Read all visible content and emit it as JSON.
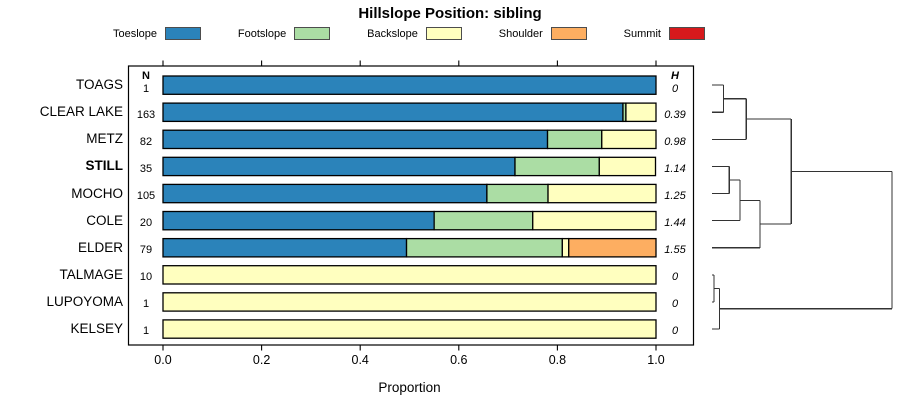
{
  "title": "Hillslope Position: sibling",
  "xlabel": "Proportion",
  "columns": {
    "n_header": "N",
    "h_header": "H"
  },
  "legend": [
    {
      "label": "Toeslope",
      "color": "#2B83BA"
    },
    {
      "label": "Footslope",
      "color": "#ABDDA4"
    },
    {
      "label": "Backslope",
      "color": "#FFFFBF"
    },
    {
      "label": "Shoulder",
      "color": "#FDAE61"
    },
    {
      "label": "Summit",
      "color": "#D7191C"
    }
  ],
  "chart_data": {
    "type": "bar",
    "stacked": true,
    "orientation": "horizontal",
    "title": "Hillslope Position: sibling",
    "xlabel": "Proportion",
    "xlim": [
      0,
      1
    ],
    "x_ticks": [
      "0.0",
      "0.2",
      "0.4",
      "0.6",
      "0.8",
      "1.0"
    ],
    "categories": [
      "Toeslope",
      "Footslope",
      "Backslope",
      "Shoulder",
      "Summit"
    ],
    "category_colors": [
      "#2B83BA",
      "#ABDDA4",
      "#FFFFBF",
      "#FDAE61",
      "#D7191C"
    ],
    "rows": [
      {
        "label": "TOAGS",
        "bold": false,
        "n": "1",
        "h": "0",
        "values": [
          1,
          0,
          0,
          0,
          0
        ]
      },
      {
        "label": "CLEAR LAKE",
        "bold": false,
        "n": "163",
        "h": "0.39",
        "values": [
          0.933,
          0.006,
          0.061,
          0,
          0
        ]
      },
      {
        "label": "METZ",
        "bold": false,
        "n": "82",
        "h": "0.98",
        "values": [
          0.78,
          0.11,
          0.11,
          0,
          0
        ]
      },
      {
        "label": "STILL",
        "bold": true,
        "n": "35",
        "h": "1.14",
        "values": [
          0.714,
          0.171,
          0.114,
          0,
          0
        ]
      },
      {
        "label": "MOCHO",
        "bold": false,
        "n": "105",
        "h": "1.25",
        "values": [
          0.657,
          0.124,
          0.219,
          0,
          0
        ]
      },
      {
        "label": "COLE",
        "bold": false,
        "n": "20",
        "h": "1.44",
        "values": [
          0.55,
          0.2,
          0.25,
          0,
          0
        ]
      },
      {
        "label": "ELDER",
        "bold": false,
        "n": "79",
        "h": "1.55",
        "values": [
          0.494,
          0.316,
          0.013,
          0.177,
          0
        ]
      },
      {
        "label": "TALMAGE",
        "bold": false,
        "n": "10",
        "h": "0",
        "values": [
          0,
          0,
          1,
          0,
          0
        ]
      },
      {
        "label": "LUPOYOMA",
        "bold": false,
        "n": "1",
        "h": "0",
        "values": [
          0,
          0,
          1,
          0,
          0
        ]
      },
      {
        "label": "KELSEY",
        "bold": false,
        "n": "1",
        "h": "0",
        "values": [
          0,
          0,
          1,
          0,
          0
        ]
      }
    ],
    "dendrogram": {
      "note": "merges reference leaf labels or prior merge index as #i; h is height fraction 0-1 of root height",
      "merges": [
        {
          "a": "TOAGS",
          "b": "CLEAR LAKE",
          "h": 0.063
        },
        {
          "a": "#0",
          "b": "METZ",
          "h": 0.19
        },
        {
          "a": "STILL",
          "b": "MOCHO",
          "h": 0.096
        },
        {
          "a": "#2",
          "b": "COLE",
          "h": 0.156
        },
        {
          "a": "#3",
          "b": "ELDER",
          "h": 0.267
        },
        {
          "a": "#1",
          "b": "#4",
          "h": 0.44
        },
        {
          "a": "TALMAGE",
          "b": "LUPOYOMA",
          "h": 0.011
        },
        {
          "a": "#6",
          "b": "KELSEY",
          "h": 0.041
        },
        {
          "a": "#5",
          "b": "#7",
          "h": 1.0
        }
      ]
    }
  },
  "style": {
    "bar_stroke": "#000000",
    "box_stroke": "#000000",
    "dendro_stroke": "#333333"
  }
}
